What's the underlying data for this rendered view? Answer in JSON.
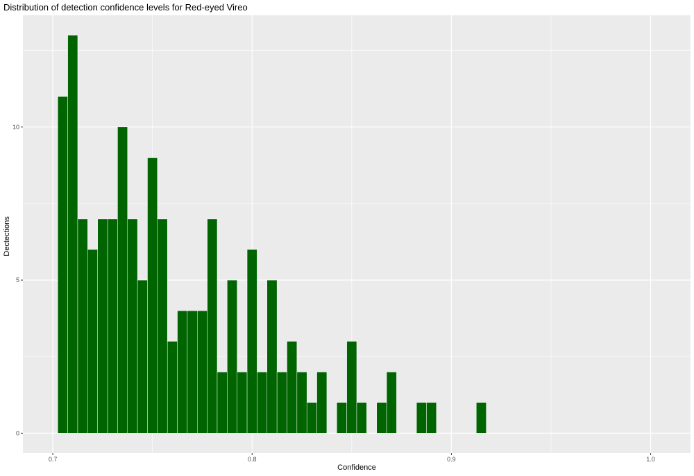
{
  "chart_data": {
    "type": "bar",
    "title": "Distribution of detection confidence levels for Red-eyed Vireo",
    "xlabel": "Confidence",
    "ylabel": "Dectections",
    "xlim": [
      0.685,
      1.02
    ],
    "ylim": [
      -0.65,
      13.65
    ],
    "x_ticks": [
      0.7,
      0.8,
      0.9,
      1.0
    ],
    "x_tick_labels": [
      "0.7",
      "0.8",
      "0.9",
      "1.0"
    ],
    "y_ticks": [
      0,
      5,
      10
    ],
    "y_tick_labels": [
      "0",
      "5",
      "10"
    ],
    "grid": true,
    "bin_width": 0.005,
    "bin_start": 0.7025,
    "counts": [
      11,
      13,
      7,
      6,
      7,
      7,
      10,
      7,
      5,
      9,
      7,
      3,
      4,
      4,
      4,
      7,
      2,
      5,
      2,
      6,
      2,
      5,
      2,
      3,
      2,
      1,
      2,
      0,
      1,
      3,
      1,
      0,
      1,
      2,
      0,
      0,
      1,
      1,
      0,
      0,
      0,
      0,
      1
    ],
    "bar_color": "#006400",
    "panel_color": "#EBEBEB"
  }
}
